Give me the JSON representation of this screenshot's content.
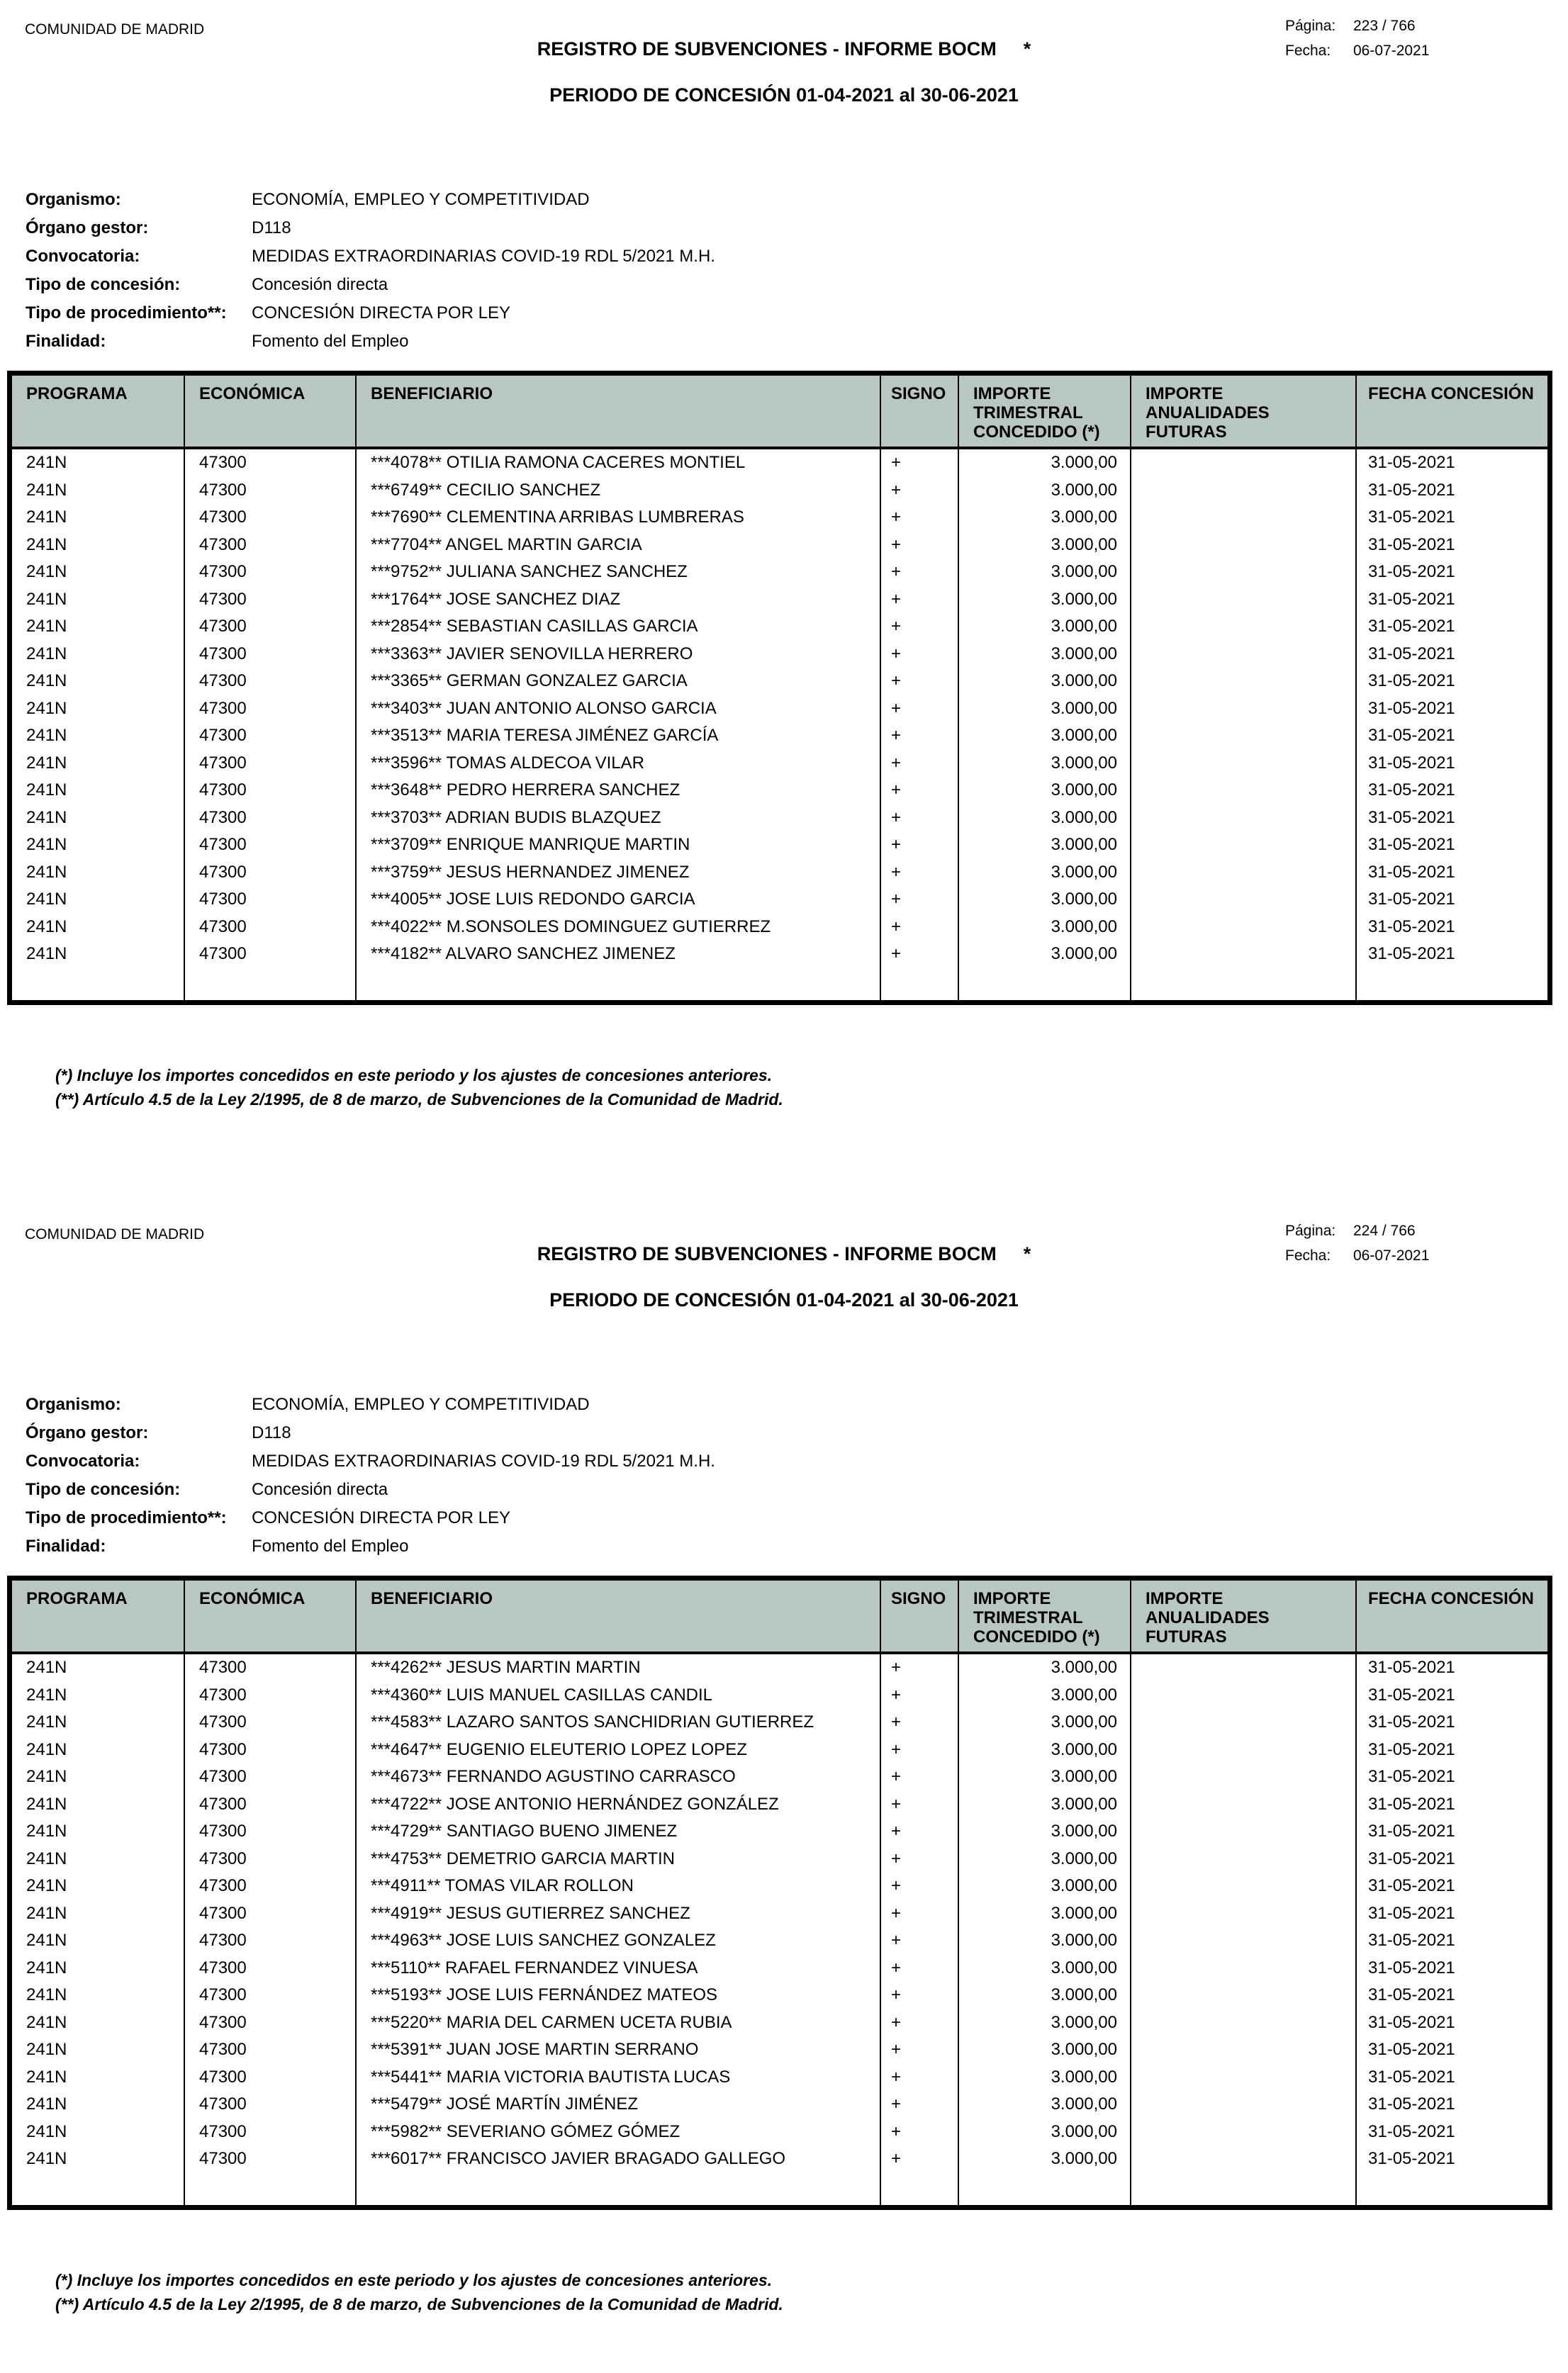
{
  "header_bg_color": "#b8c7c2",
  "border_color": "#000000",
  "pages": [
    {
      "org_name": "COMUNIDAD DE MADRID",
      "title": "REGISTRO DE SUBVENCIONES - INFORME BOCM",
      "title_mark": "*",
      "subtitle": "PERIODO DE CONCESIÓN 01-04-2021 al 30-06-2021",
      "page_label": "Página:",
      "page_number": "223 / 766",
      "date_label": "Fecha:",
      "date_value": "06-07-2021",
      "meta": [
        {
          "label": "Organismo:",
          "value": "ECONOMÍA, EMPLEO Y COMPETITIVIDAD"
        },
        {
          "label": "Órgano gestor:",
          "value": "D118"
        },
        {
          "label": "Convocatoria:",
          "value": "MEDIDAS EXTRAORDINARIAS COVID-19 RDL 5/2021 M.H."
        },
        {
          "label": "Tipo de concesión:",
          "value": "Concesión directa"
        },
        {
          "label": "Tipo de procedimiento**:",
          "value": "CONCESIÓN DIRECTA POR LEY"
        },
        {
          "label": "Finalidad:",
          "value": "Fomento del Empleo"
        }
      ],
      "table": {
        "columns": [
          "PROGRAMA",
          "ECONÓMICA",
          "BENEFICIARIO",
          "SIGNO",
          "IMPORTE\nTRIMESTRAL\nCONCEDIDO (*)",
          "IMPORTE\nANUALIDADES\nFUTURAS",
          "FECHA CONCESIÓN"
        ],
        "rows": [
          [
            "241N",
            "47300",
            "***4078** OTILIA RAMONA CACERES MONTIEL",
            "+",
            "3.000,00",
            "",
            "31-05-2021"
          ],
          [
            "241N",
            "47300",
            "***6749** CECILIO SANCHEZ",
            "+",
            "3.000,00",
            "",
            "31-05-2021"
          ],
          [
            "241N",
            "47300",
            "***7690** CLEMENTINA ARRIBAS LUMBRERAS",
            "+",
            "3.000,00",
            "",
            "31-05-2021"
          ],
          [
            "241N",
            "47300",
            "***7704** ANGEL MARTIN GARCIA",
            "+",
            "3.000,00",
            "",
            "31-05-2021"
          ],
          [
            "241N",
            "47300",
            "***9752** JULIANA SANCHEZ SANCHEZ",
            "+",
            "3.000,00",
            "",
            "31-05-2021"
          ],
          [
            "241N",
            "47300",
            "***1764** JOSE SANCHEZ DIAZ",
            "+",
            "3.000,00",
            "",
            "31-05-2021"
          ],
          [
            "241N",
            "47300",
            "***2854** SEBASTIAN CASILLAS GARCIA",
            "+",
            "3.000,00",
            "",
            "31-05-2021"
          ],
          [
            "241N",
            "47300",
            "***3363** JAVIER SENOVILLA HERRERO",
            "+",
            "3.000,00",
            "",
            "31-05-2021"
          ],
          [
            "241N",
            "47300",
            "***3365** GERMAN GONZALEZ GARCIA",
            "+",
            "3.000,00",
            "",
            "31-05-2021"
          ],
          [
            "241N",
            "47300",
            "***3403** JUAN ANTONIO ALONSO GARCIA",
            "+",
            "3.000,00",
            "",
            "31-05-2021"
          ],
          [
            "241N",
            "47300",
            "***3513** MARIA TERESA JIMÉNEZ GARCÍA",
            "+",
            "3.000,00",
            "",
            "31-05-2021"
          ],
          [
            "241N",
            "47300",
            "***3596** TOMAS ALDECOA VILAR",
            "+",
            "3.000,00",
            "",
            "31-05-2021"
          ],
          [
            "241N",
            "47300",
            "***3648** PEDRO HERRERA SANCHEZ",
            "+",
            "3.000,00",
            "",
            "31-05-2021"
          ],
          [
            "241N",
            "47300",
            "***3703** ADRIAN BUDIS BLAZQUEZ",
            "+",
            "3.000,00",
            "",
            "31-05-2021"
          ],
          [
            "241N",
            "47300",
            "***3709** ENRIQUE MANRIQUE MARTIN",
            "+",
            "3.000,00",
            "",
            "31-05-2021"
          ],
          [
            "241N",
            "47300",
            "***3759** JESUS HERNANDEZ JIMENEZ",
            "+",
            "3.000,00",
            "",
            "31-05-2021"
          ],
          [
            "241N",
            "47300",
            "***4005** JOSE LUIS REDONDO GARCIA",
            "+",
            "3.000,00",
            "",
            "31-05-2021"
          ],
          [
            "241N",
            "47300",
            "***4022** M.SONSOLES DOMINGUEZ GUTIERREZ",
            "+",
            "3.000,00",
            "",
            "31-05-2021"
          ],
          [
            "241N",
            "47300",
            "***4182** ALVARO SANCHEZ JIMENEZ",
            "+",
            "3.000,00",
            "",
            "31-05-2021"
          ]
        ]
      },
      "footnotes": [
        "(*) Incluye los importes concedidos en este periodo y los ajustes de concesiones anteriores.",
        "(**) Artículo 4.5 de la Ley 2/1995, de 8 de marzo, de Subvenciones de la Comunidad de Madrid."
      ]
    },
    {
      "org_name": "COMUNIDAD DE MADRID",
      "title": "REGISTRO DE SUBVENCIONES - INFORME BOCM",
      "title_mark": "*",
      "subtitle": "PERIODO DE CONCESIÓN 01-04-2021 al 30-06-2021",
      "page_label": "Página:",
      "page_number": "224 / 766",
      "date_label": "Fecha:",
      "date_value": "06-07-2021",
      "meta": [
        {
          "label": "Organismo:",
          "value": "ECONOMÍA, EMPLEO Y COMPETITIVIDAD"
        },
        {
          "label": "Órgano gestor:",
          "value": "D118"
        },
        {
          "label": "Convocatoria:",
          "value": "MEDIDAS EXTRAORDINARIAS COVID-19 RDL 5/2021 M.H."
        },
        {
          "label": "Tipo de concesión:",
          "value": "Concesión directa"
        },
        {
          "label": "Tipo de procedimiento**:",
          "value": "CONCESIÓN DIRECTA POR LEY"
        },
        {
          "label": "Finalidad:",
          "value": "Fomento del Empleo"
        }
      ],
      "table": {
        "columns": [
          "PROGRAMA",
          "ECONÓMICA",
          "BENEFICIARIO",
          "SIGNO",
          "IMPORTE\nTRIMESTRAL\nCONCEDIDO (*)",
          "IMPORTE\nANUALIDADES\nFUTURAS",
          "FECHA CONCESIÓN"
        ],
        "rows": [
          [
            "241N",
            "47300",
            "***4262** JESUS MARTIN MARTIN",
            "+",
            "3.000,00",
            "",
            "31-05-2021"
          ],
          [
            "241N",
            "47300",
            "***4360** LUIS MANUEL CASILLAS CANDIL",
            "+",
            "3.000,00",
            "",
            "31-05-2021"
          ],
          [
            "241N",
            "47300",
            "***4583** LAZARO SANTOS SANCHIDRIAN GUTIERREZ",
            "+",
            "3.000,00",
            "",
            "31-05-2021"
          ],
          [
            "241N",
            "47300",
            "***4647** EUGENIO ELEUTERIO LOPEZ LOPEZ",
            "+",
            "3.000,00",
            "",
            "31-05-2021"
          ],
          [
            "241N",
            "47300",
            "***4673** FERNANDO AGUSTINO CARRASCO",
            "+",
            "3.000,00",
            "",
            "31-05-2021"
          ],
          [
            "241N",
            "47300",
            "***4722** JOSE ANTONIO HERNÁNDEZ GONZÁLEZ",
            "+",
            "3.000,00",
            "",
            "31-05-2021"
          ],
          [
            "241N",
            "47300",
            "***4729** SANTIAGO BUENO JIMENEZ",
            "+",
            "3.000,00",
            "",
            "31-05-2021"
          ],
          [
            "241N",
            "47300",
            "***4753** DEMETRIO GARCIA MARTIN",
            "+",
            "3.000,00",
            "",
            "31-05-2021"
          ],
          [
            "241N",
            "47300",
            "***4911** TOMAS VILAR ROLLON",
            "+",
            "3.000,00",
            "",
            "31-05-2021"
          ],
          [
            "241N",
            "47300",
            "***4919** JESUS GUTIERREZ SANCHEZ",
            "+",
            "3.000,00",
            "",
            "31-05-2021"
          ],
          [
            "241N",
            "47300",
            "***4963** JOSE LUIS SANCHEZ GONZALEZ",
            "+",
            "3.000,00",
            "",
            "31-05-2021"
          ],
          [
            "241N",
            "47300",
            "***5110** RAFAEL FERNANDEZ VINUESA",
            "+",
            "3.000,00",
            "",
            "31-05-2021"
          ],
          [
            "241N",
            "47300",
            "***5193** JOSE LUIS FERNÁNDEZ MATEOS",
            "+",
            "3.000,00",
            "",
            "31-05-2021"
          ],
          [
            "241N",
            "47300",
            "***5220** MARIA DEL CARMEN UCETA RUBIA",
            "+",
            "3.000,00",
            "",
            "31-05-2021"
          ],
          [
            "241N",
            "47300",
            "***5391** JUAN JOSE MARTIN SERRANO",
            "+",
            "3.000,00",
            "",
            "31-05-2021"
          ],
          [
            "241N",
            "47300",
            "***5441** MARIA VICTORIA BAUTISTA LUCAS",
            "+",
            "3.000,00",
            "",
            "31-05-2021"
          ],
          [
            "241N",
            "47300",
            "***5479** JOSÉ MARTÍN JIMÉNEZ",
            "+",
            "3.000,00",
            "",
            "31-05-2021"
          ],
          [
            "241N",
            "47300",
            "***5982** SEVERIANO GÓMEZ GÓMEZ",
            "+",
            "3.000,00",
            "",
            "31-05-2021"
          ],
          [
            "241N",
            "47300",
            "***6017** FRANCISCO JAVIER BRAGADO GALLEGO",
            "+",
            "3.000,00",
            "",
            "31-05-2021"
          ]
        ]
      },
      "footnotes": [
        "(*) Incluye los importes concedidos en este periodo y los ajustes de concesiones anteriores.",
        "(**) Artículo 4.5 de la Ley 2/1995, de 8 de marzo, de Subvenciones de la Comunidad de Madrid."
      ]
    }
  ]
}
